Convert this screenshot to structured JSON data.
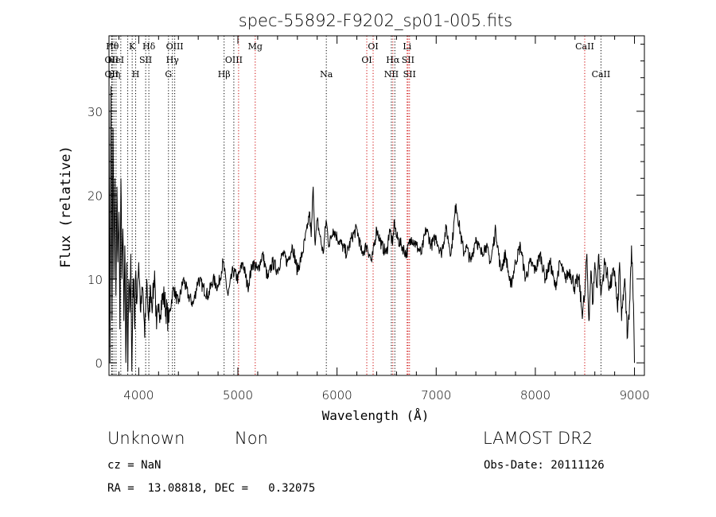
{
  "chart_data": {
    "type": "line",
    "title": "spec-55892-F9202_sp01-005.fits",
    "xlabel": "Wavelength (Å)",
    "ylabel": "Flux (relative)",
    "xlim": [
      3700,
      9100
    ],
    "ylim": [
      -1.5,
      39
    ],
    "xticks": [
      4000,
      5000,
      6000,
      7000,
      8000,
      9000
    ],
    "yticks": [
      0,
      10,
      20,
      30
    ],
    "grid": false,
    "series": [
      {
        "x": [
          3700,
          3710,
          3720,
          3730,
          3740,
          3750,
          3760,
          3770,
          3780,
          3790,
          3800,
          3810,
          3820,
          3830,
          3840,
          3850,
          3860,
          3870,
          3880,
          3890,
          3900,
          3910,
          3920,
          3930,
          3940,
          3950,
          3960,
          3970,
          3980,
          3990,
          4000,
          4020,
          4040,
          4060,
          4080,
          4100,
          4120,
          4140,
          4160,
          4180,
          4200,
          4250,
          4300,
          4350,
          4400,
          4450,
          4500,
          4550,
          4600,
          4650,
          4700,
          4750,
          4800,
          4850,
          4900,
          4950,
          5000,
          5050,
          5100,
          5150,
          5200,
          5250,
          5300,
          5350,
          5400,
          5450,
          5500,
          5550,
          5600,
          5650,
          5700,
          5720,
          5740,
          5760,
          5780,
          5800,
          5830,
          5860,
          5890,
          5920,
          5960,
          6000,
          6050,
          6100,
          6150,
          6200,
          6250,
          6300,
          6350,
          6400,
          6450,
          6500,
          6530,
          6560,
          6580,
          6600,
          6650,
          6700,
          6750,
          6800,
          6850,
          6900,
          6950,
          7000,
          7050,
          7100,
          7150,
          7200,
          7250,
          7280,
          7300,
          7350,
          7400,
          7450,
          7500,
          7550,
          7600,
          7650,
          7700,
          7750,
          7800,
          7850,
          7900,
          7950,
          8000,
          8050,
          8100,
          8150,
          8200,
          8250,
          8300,
          8350,
          8400,
          8440,
          8470,
          8500,
          8520,
          8540,
          8560,
          8580,
          8600,
          8620,
          8640,
          8660,
          8680,
          8700,
          8750,
          8800,
          8830,
          8850,
          8870,
          8900,
          8930,
          8950,
          8970,
          8990,
          9000
        ],
        "y": [
          36,
          0,
          33,
          5,
          28,
          10,
          22,
          8,
          21,
          12,
          18,
          4,
          22,
          10,
          16,
          5,
          14,
          0,
          12,
          -1,
          10,
          6,
          13,
          -1,
          8,
          10,
          4,
          11,
          7,
          10,
          12,
          6,
          9,
          3,
          10,
          5,
          9,
          7,
          11,
          4,
          6,
          8,
          5,
          9,
          7,
          10,
          8,
          7,
          10,
          9,
          8,
          10,
          9,
          12,
          8,
          11,
          10,
          12,
          9,
          12,
          11,
          13,
          10,
          12,
          11,
          13,
          12,
          14,
          11,
          13,
          16,
          18,
          15,
          21,
          14,
          17,
          15,
          13,
          17,
          14,
          16,
          15,
          14,
          13,
          15,
          16,
          13,
          14,
          12,
          16,
          14,
          13,
          16,
          14,
          17,
          15,
          14,
          13,
          15,
          14,
          13,
          16,
          14,
          15,
          13,
          16,
          13,
          19,
          15,
          13,
          14,
          12,
          15,
          13,
          14,
          12,
          16,
          11,
          13,
          9,
          12,
          14,
          10,
          12,
          11,
          13,
          10,
          12,
          9,
          12,
          10,
          11,
          9,
          10,
          6,
          8,
          13,
          5,
          11,
          7,
          12,
          9,
          13,
          8,
          10,
          12,
          9,
          11,
          6,
          12,
          5,
          10,
          3,
          7,
          14,
          7,
          0
        ],
        "name": ""
      }
    ],
    "lines": [
      {
        "wave": 3727,
        "color": "#000000",
        "label": "OII",
        "row": 2
      },
      {
        "wave": 3727,
        "color": "#000000",
        "label": "OII",
        "row": 3
      },
      {
        "wave": 3734,
        "color": "#000000",
        "label": "Hθ",
        "row": 1
      },
      {
        "wave": 3750,
        "color": "#000000",
        "label": "Hη",
        "row": 3
      },
      {
        "wave": 3771,
        "color": "#000000",
        "label": "HeI",
        "row": 2
      },
      {
        "wave": 3819,
        "color": "#000000",
        "label": "",
        "row": 0
      },
      {
        "wave": 3889,
        "color": "#000000",
        "label": "",
        "row": 0
      },
      {
        "wave": 3934,
        "color": "#000000",
        "label": "K",
        "row": 1
      },
      {
        "wave": 3969,
        "color": "#000000",
        "label": "H",
        "row": 3
      },
      {
        "wave": 4070,
        "color": "#000000",
        "label": "SII",
        "row": 2
      },
      {
        "wave": 4102,
        "color": "#000000",
        "label": "Hδ",
        "row": 1
      },
      {
        "wave": 4300,
        "color": "#000000",
        "label": "G",
        "row": 3
      },
      {
        "wave": 4340,
        "color": "#000000",
        "label": "Hγ",
        "row": 2
      },
      {
        "wave": 4363,
        "color": "#000000",
        "label": "OIII",
        "row": 1
      },
      {
        "wave": 4861,
        "color": "#000000",
        "label": "Hβ",
        "row": 3
      },
      {
        "wave": 4959,
        "color": "#000000",
        "label": "OIII",
        "row": 2
      },
      {
        "wave": 5007,
        "color": "#cc0000",
        "label": "",
        "row": 0
      },
      {
        "wave": 5175,
        "color": "#cc0000",
        "label": "Mg",
        "row": 1
      },
      {
        "wave": 5892,
        "color": "#000000",
        "label": "Na",
        "row": 3
      },
      {
        "wave": 6300,
        "color": "#cc0000",
        "label": "OI",
        "row": 2
      },
      {
        "wave": 6364,
        "color": "#cc0000",
        "label": "OI",
        "row": 1
      },
      {
        "wave": 6548,
        "color": "#000000",
        "label": "NII",
        "row": 3
      },
      {
        "wave": 6563,
        "color": "#cc0000",
        "label": "Hα",
        "row": 2
      },
      {
        "wave": 6583,
        "color": "#000000",
        "label": "",
        "row": 0
      },
      {
        "wave": 6707,
        "color": "#cc0000",
        "label": "Li",
        "row": 1
      },
      {
        "wave": 6716,
        "color": "#cc0000",
        "label": "SII",
        "row": 2
      },
      {
        "wave": 6731,
        "color": "#cc0000",
        "label": "SII",
        "row": 3
      },
      {
        "wave": 8498,
        "color": "#cc0000",
        "label": "CaII",
        "row": 1
      },
      {
        "wave": 8662,
        "color": "#000000",
        "label": "CaII",
        "row": 3
      }
    ]
  },
  "info": {
    "class_label": "Unknown",
    "subclass_label": "Non",
    "survey": "LAMOST DR2",
    "cz": "cz = NaN",
    "obs_date": "Obs-Date: 20111126",
    "coords": "RA =  13.08818, DEC =   0.32075"
  }
}
